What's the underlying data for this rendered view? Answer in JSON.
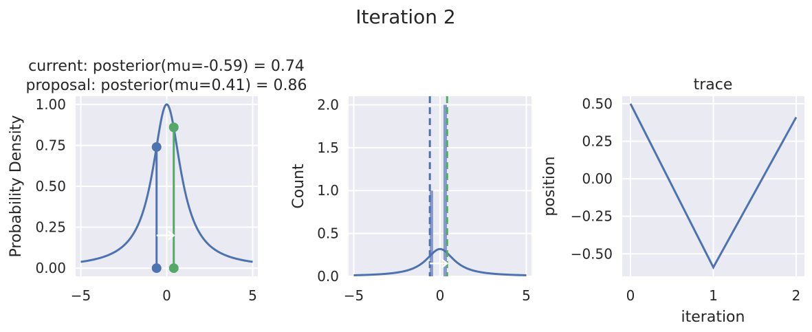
{
  "figure_title": "Iteration 2",
  "colors": {
    "background": "#eaeaf2",
    "grid": "#ffffff",
    "blue": "#4c72b0",
    "green": "#55a868",
    "hist": "#7a90c8",
    "text": "#262626"
  },
  "chart_data": [
    {
      "type": "line",
      "title_line1": "current: posterior(mu=-0.59) = 0.74",
      "title_line2": "proposal: posterior(mu=0.41) = 0.86",
      "xlabel": "",
      "ylabel": "Probability Density",
      "xlim": [
        -5.3,
        5.3
      ],
      "ylim": [
        -0.05,
        1.05
      ],
      "xticks": [
        -5,
        0,
        5
      ],
      "xtick_labels": [
        "−5",
        "0",
        "5"
      ],
      "yticks": [
        0.0,
        0.25,
        0.5,
        0.75,
        1.0
      ],
      "ytick_labels": [
        "0.00",
        "0.25",
        "0.50",
        "0.75",
        "1.00"
      ],
      "curve": {
        "kind": "cauchy_normalized",
        "x_range": [
          -5,
          5
        ]
      },
      "current": {
        "mu": -0.59,
        "posterior": 0.74
      },
      "proposal": {
        "mu": 0.41,
        "posterior": 0.86
      },
      "arrow": {
        "from": -0.59,
        "to": 0.41,
        "y": 0.2
      }
    },
    {
      "type": "bar",
      "title": "",
      "xlabel": "",
      "ylabel": "Count",
      "xlim": [
        -5.3,
        5.3
      ],
      "ylim": [
        0,
        2.1
      ],
      "xticks": [
        -5,
        0,
        5
      ],
      "xtick_labels": [
        "−5",
        "0",
        "5"
      ],
      "yticks": [
        0.0,
        0.5,
        1.0,
        1.5,
        2.0
      ],
      "ytick_labels": [
        "0.0",
        "0.5",
        "1.0",
        "1.5",
        "2.0"
      ],
      "bars": [
        {
          "left": -0.6,
          "right": -0.4,
          "count": 1
        },
        {
          "left": 0.2,
          "right": 0.4,
          "count": 2
        }
      ],
      "curve": {
        "kind": "cauchy_pdf",
        "x_range": [
          -5,
          5
        ]
      },
      "current_line": -0.59,
      "proposal_line": 0.41,
      "arrow": {
        "from": -0.59,
        "to": 0.41,
        "y": 0.15
      }
    },
    {
      "type": "line",
      "title": "trace",
      "xlabel": "iteration",
      "ylabel": "position",
      "xlim": [
        -0.1,
        2.1
      ],
      "ylim": [
        -0.65,
        0.55
      ],
      "xticks": [
        0,
        1,
        2
      ],
      "xtick_labels": [
        "0",
        "1",
        "2"
      ],
      "yticks": [
        0.5,
        0.25,
        0.0,
        -0.25,
        -0.5
      ],
      "ytick_labels": [
        "0.50",
        "0.25",
        "0.00",
        "−0.25",
        "−0.50"
      ],
      "x": [
        0,
        1,
        2
      ],
      "y": [
        0.5,
        -0.59,
        0.41
      ]
    }
  ]
}
